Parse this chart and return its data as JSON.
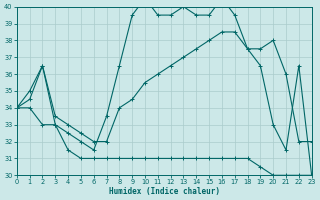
{
  "xlabel": "Humidex (Indice chaleur)",
  "bg_color": "#cce8e8",
  "grid_color": "#aacccc",
  "line_color": "#006666",
  "xlim": [
    0,
    23
  ],
  "ylim": [
    30,
    40
  ],
  "yticks": [
    30,
    31,
    32,
    33,
    34,
    35,
    36,
    37,
    38,
    39,
    40
  ],
  "xticks": [
    0,
    1,
    2,
    3,
    4,
    5,
    6,
    7,
    8,
    9,
    10,
    11,
    12,
    13,
    14,
    15,
    16,
    17,
    18,
    19,
    20,
    21,
    22,
    23
  ],
  "s_flat": [
    34.0,
    34.0,
    33.0,
    33.0,
    31.5,
    31.0,
    31.0,
    31.0,
    31.0,
    31.0,
    31.0,
    31.0,
    31.0,
    31.0,
    31.0,
    31.0,
    31.0,
    31.0,
    31.0,
    30.5,
    30.0,
    30.0,
    30.0,
    30.0
  ],
  "s_wavy": [
    34.0,
    34.5,
    36.5,
    33.0,
    32.5,
    32.0,
    31.5,
    33.5,
    36.5,
    39.5,
    40.5,
    39.5,
    39.5,
    40.0,
    39.5,
    39.5,
    40.5,
    39.5,
    37.5,
    36.5,
    33.0,
    31.5,
    36.5,
    30.0
  ],
  "s_diag": [
    34.0,
    35.0,
    36.5,
    33.5,
    33.0,
    32.5,
    32.0,
    32.0,
    34.0,
    34.5,
    35.5,
    36.0,
    36.5,
    37.0,
    37.5,
    38.0,
    38.5,
    38.5,
    37.5,
    37.5,
    38.0,
    36.0,
    32.0,
    32.0
  ]
}
